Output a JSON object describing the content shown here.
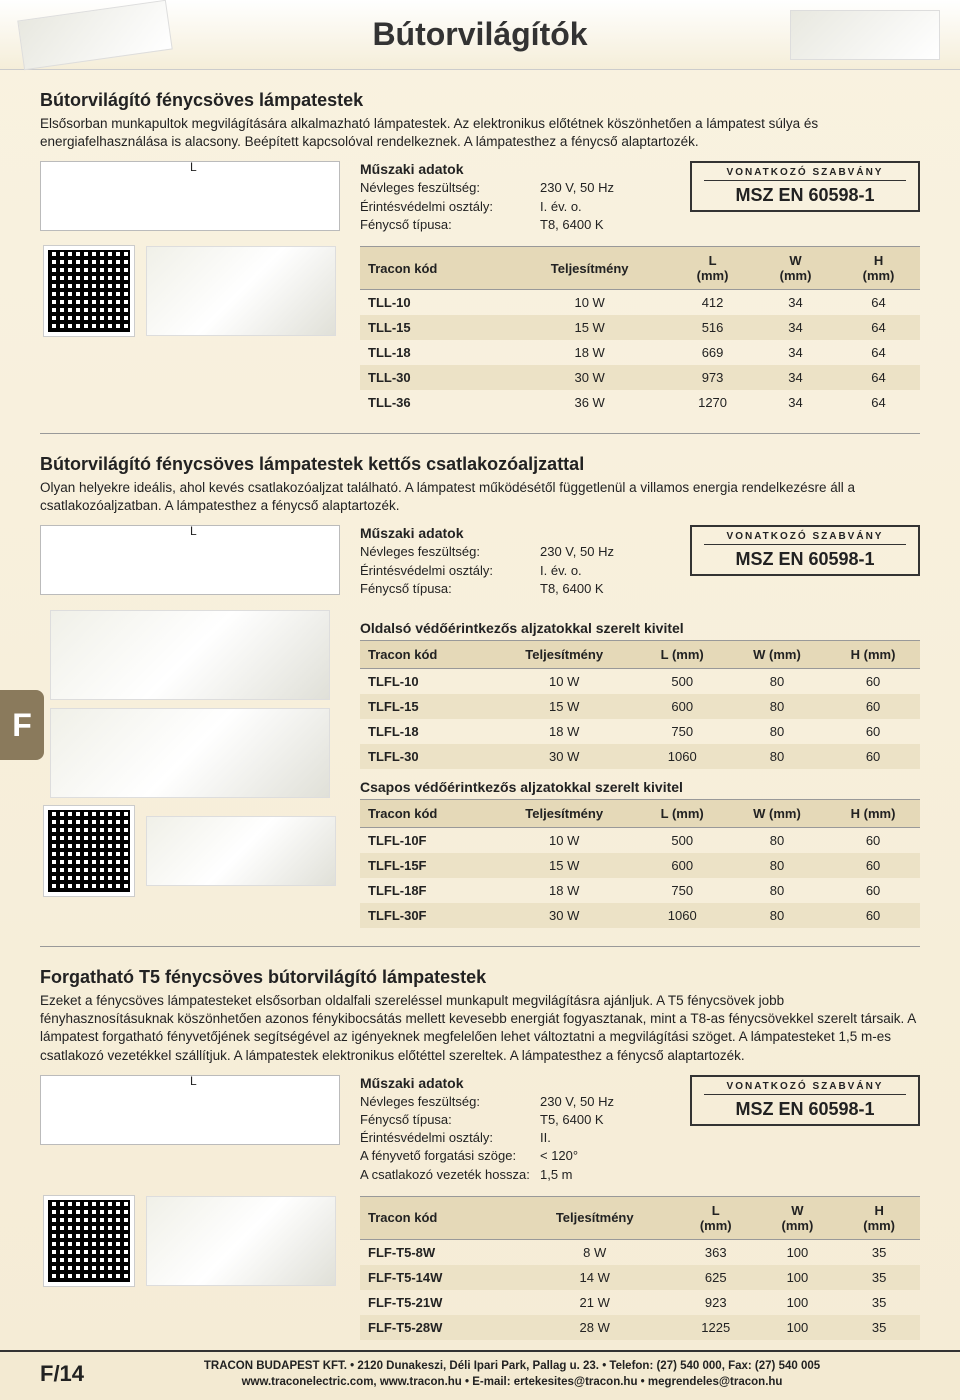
{
  "page": {
    "main_title": "Bútorvilágítók",
    "side_tab": "F",
    "page_number": "F/14"
  },
  "standard": {
    "label": "VONATKOZÓ SZABVÁNY",
    "value": "MSZ EN 60598-1"
  },
  "footer": {
    "line1": "TRACON BUDAPEST KFT. • 2120 Dunakeszi, Déli Ipari Park, Pallag u. 23. • Telefon: (27) 540 000, Fax: (27) 540 005",
    "line2": "www.traconelectric.com, www.tracon.hu • E-mail: ertekesites@tracon.hu • megrendeles@tracon.hu"
  },
  "section1": {
    "title": "Bútorvilágító fénycsöves lámpatestek",
    "desc": "Elsősorban munkapultok megvilágítására alkalmazható lámpatestek. Az elektronikus előtétnek köszönhetően a lámpatest súlya és energiafelhasználása is alacsony. Beépített kapcsolóval rendelkeznek. A lámpatesthez a fénycső alaptartozék.",
    "spec_heading": "Műszaki adatok",
    "specs": [
      {
        "lbl": "Névleges feszültség:",
        "val": "230 V, 50 Hz"
      },
      {
        "lbl": "Érintésvédelmi osztály:",
        "val": "I. év. o."
      },
      {
        "lbl": "Fénycső típusa:",
        "val": "T8, 6400 K"
      }
    ],
    "table": {
      "columns": [
        "Tracon kód",
        "Teljesítmény",
        "L (mm)",
        "W (mm)",
        "H (mm)"
      ],
      "columns_multi": [
        {
          "l1": "Tracon kód",
          "l2": ""
        },
        {
          "l1": "Teljesítmény",
          "l2": ""
        },
        {
          "l1": "L",
          "l2": "(mm)"
        },
        {
          "l1": "W",
          "l2": "(mm)"
        },
        {
          "l1": "H",
          "l2": "(mm)"
        }
      ],
      "rows": [
        [
          "TLL-10",
          "10 W",
          "412",
          "34",
          "64"
        ],
        [
          "TLL-15",
          "15 W",
          "516",
          "34",
          "64"
        ],
        [
          "TLL-18",
          "18 W",
          "669",
          "34",
          "64"
        ],
        [
          "TLL-30",
          "30 W",
          "973",
          "34",
          "64"
        ],
        [
          "TLL-36",
          "36 W",
          "1270",
          "34",
          "64"
        ]
      ]
    }
  },
  "section2": {
    "title": "Bútorvilágító fénycsöves lámpatestek kettős csatlakozóaljzattal",
    "desc": "Olyan helyekre ideális, ahol kevés csatlakozóaljzat található. A lámpatest működésétől függetlenül a villamos energia rendelkezésre áll a csatlakozóaljzatban. A lámpatesthez a fénycső alaptartozék.",
    "spec_heading": "Műszaki adatok",
    "specs": [
      {
        "lbl": "Névleges feszültség:",
        "val": "230 V, 50 Hz"
      },
      {
        "lbl": "Érintésvédelmi osztály:",
        "val": "I. év. o."
      },
      {
        "lbl": "Fénycső típusa:",
        "val": "T8, 6400 K"
      }
    ],
    "sub1_heading": "Oldalsó védőérintkezős aljzatokkal szerelt kivitel",
    "sub2_heading": "Csapos védőérintkezős aljzatokkal szerelt kivitel",
    "table_cols": [
      "Tracon kód",
      "Teljesítmény",
      "L (mm)",
      "W (mm)",
      "H (mm)"
    ],
    "table1_rows": [
      [
        "TLFL-10",
        "10 W",
        "500",
        "80",
        "60"
      ],
      [
        "TLFL-15",
        "15 W",
        "600",
        "80",
        "60"
      ],
      [
        "TLFL-18",
        "18 W",
        "750",
        "80",
        "60"
      ],
      [
        "TLFL-30",
        "30 W",
        "1060",
        "80",
        "60"
      ]
    ],
    "table2_rows": [
      [
        "TLFL-10F",
        "10 W",
        "500",
        "80",
        "60"
      ],
      [
        "TLFL-15F",
        "15 W",
        "600",
        "80",
        "60"
      ],
      [
        "TLFL-18F",
        "18 W",
        "750",
        "80",
        "60"
      ],
      [
        "TLFL-30F",
        "30 W",
        "1060",
        "80",
        "60"
      ]
    ]
  },
  "section3": {
    "title": "Forgatható T5 fénycsöves bútorvilágító lámpatestek",
    "desc": "Ezeket a fénycsöves lámpatesteket elsősorban oldalfali szereléssel munkapult megvilágításra ajánljuk. A T5 fénycsövek jobb fényhasznosításuknak köszönhetően azonos fénykibocsátás mellett kevesebb energiát fogyasztanak, mint a T8-as fénycsövekkel szerelt társaik. A lámpatest forgatható fényvetőjének segítségével az igényeknek megfelelően lehet változtatni a megvilágítási szöget. A lámpatesteket 1,5 m-es csatlakozó vezetékkel szállítjuk. A lámpatestek elektronikus előtéttel szereltek. A lámpatesthez a fénycső alaptartozék.",
    "spec_heading": "Műszaki adatok",
    "specs": [
      {
        "lbl": "Névleges feszültség:",
        "val": "230 V, 50 Hz"
      },
      {
        "lbl": "Fénycső típusa:",
        "val": "T5, 6400 K"
      },
      {
        "lbl": "Érintésvédelmi osztály:",
        "val": "II."
      },
      {
        "lbl": "A fényvető forgatási szöge:",
        "val": "< 120°"
      },
      {
        "lbl": "A csatlakozó vezeték hossza:",
        "val": "1,5 m"
      }
    ],
    "table": {
      "columns_multi": [
        {
          "l1": "Tracon kód",
          "l2": ""
        },
        {
          "l1": "Teljesítmény",
          "l2": ""
        },
        {
          "l1": "L",
          "l2": "(mm)"
        },
        {
          "l1": "W",
          "l2": "(mm)"
        },
        {
          "l1": "H",
          "l2": "(mm)"
        }
      ],
      "rows": [
        [
          "FLF-T5-8W",
          "8 W",
          "363",
          "100",
          "35"
        ],
        [
          "FLF-T5-14W",
          "14 W",
          "625",
          "100",
          "35"
        ],
        [
          "FLF-T5-21W",
          "21 W",
          "923",
          "100",
          "35"
        ],
        [
          "FLF-T5-28W",
          "28 W",
          "1225",
          "100",
          "35"
        ]
      ]
    }
  },
  "colors": {
    "header_bg": "#e5d9b8",
    "alt_row": "#ece2c6",
    "page_bg": "#f4ecd8",
    "tab_bg": "#8a7a5c"
  }
}
